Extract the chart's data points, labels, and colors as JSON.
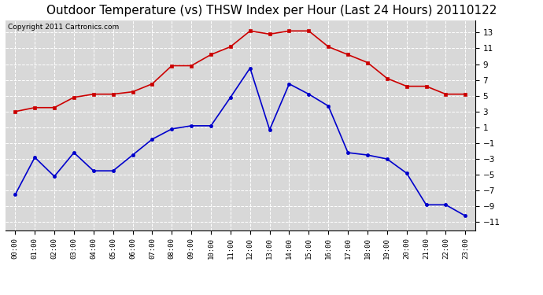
{
  "title": "Outdoor Temperature (vs) THSW Index per Hour (Last 24 Hours) 20110122",
  "copyright": "Copyright 2011 Cartronics.com",
  "hours": [
    "00:00",
    "01:00",
    "02:00",
    "03:00",
    "04:00",
    "05:00",
    "06:00",
    "07:00",
    "08:00",
    "09:00",
    "10:00",
    "11:00",
    "12:00",
    "13:00",
    "14:00",
    "15:00",
    "16:00",
    "17:00",
    "18:00",
    "19:00",
    "20:00",
    "21:00",
    "22:00",
    "23:00"
  ],
  "temp": [
    -7.5,
    -2.8,
    -5.2,
    -2.2,
    -4.5,
    -4.5,
    -2.5,
    -0.5,
    0.8,
    1.2,
    1.2,
    4.8,
    8.5,
    0.7,
    6.5,
    5.2,
    3.7,
    -2.2,
    -2.5,
    -3.0,
    -4.8,
    -8.8,
    -8.8,
    -10.2
  ],
  "thsw": [
    3.0,
    3.5,
    3.5,
    4.8,
    5.2,
    5.2,
    5.5,
    6.5,
    8.8,
    8.8,
    10.2,
    11.2,
    13.2,
    12.8,
    13.2,
    13.2,
    11.2,
    10.2,
    9.2,
    7.2,
    6.2,
    6.2,
    5.2,
    5.2
  ],
  "ylim": [
    -12.0,
    14.5
  ],
  "yticks": [
    -11.0,
    -9.0,
    -7.0,
    -5.0,
    -3.0,
    -1.0,
    1.0,
    3.0,
    5.0,
    7.0,
    9.0,
    11.0,
    13.0
  ],
  "bg_color": "#ffffff",
  "plot_bg": "#d8d8d8",
  "grid_color": "#ffffff",
  "temp_color": "#0000cc",
  "thsw_color": "#cc0000",
  "title_fontsize": 11,
  "copyright_fontsize": 6.5
}
